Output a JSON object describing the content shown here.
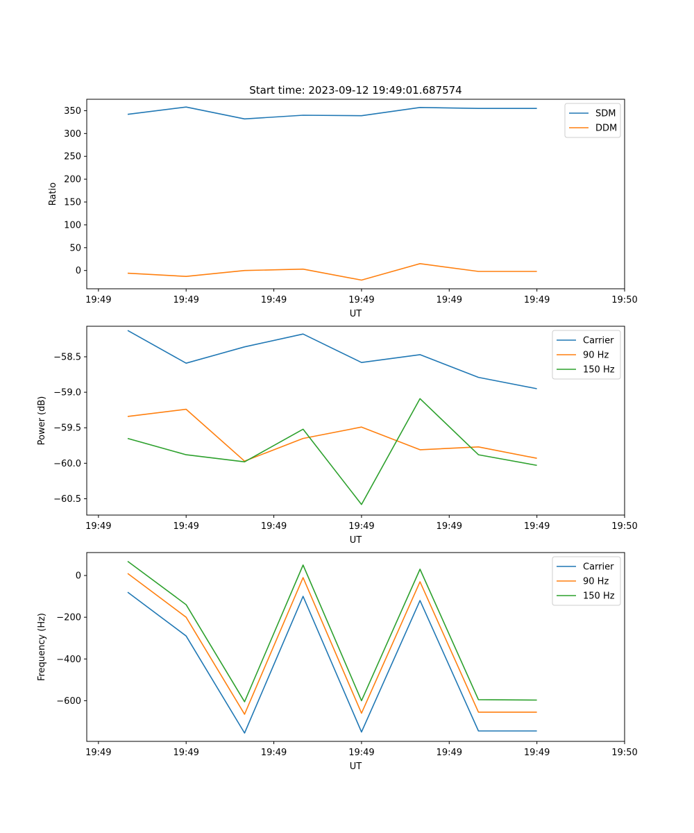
{
  "figure_title": "Start time: 2023-09-12 19:49:01.687574",
  "chart_data": [
    {
      "type": "line",
      "name": "ratio",
      "title": "Start time: 2023-09-12 19:49:01.687574",
      "xlabel": "UT",
      "ylabel": "Ratio",
      "xlim": [
        -0.2,
        9.0
      ],
      "ylim": [
        -40,
        375
      ],
      "x_ticks": [
        0,
        1.5,
        3,
        4.5,
        6,
        7.5,
        9
      ],
      "x_tick_labels": [
        "19:49",
        "19:49",
        "19:49",
        "19:49",
        "19:49",
        "19:49",
        "19:50"
      ],
      "y_ticks": [
        0,
        50,
        100,
        150,
        200,
        250,
        300,
        350
      ],
      "y_tick_labels": [
        "0",
        "50",
        "100",
        "150",
        "200",
        "250",
        "300",
        "350"
      ],
      "legend_position": "top-right",
      "x": [
        0.5,
        1.5,
        2.5,
        3.5,
        4.5,
        5.5,
        6.5,
        7.5
      ],
      "series": [
        {
          "name": "SDM",
          "color": "#1f77b4",
          "values": [
            342,
            358,
            332,
            340,
            339,
            357,
            355,
            355
          ]
        },
        {
          "name": "DDM",
          "color": "#ff7f0e",
          "values": [
            -6,
            -13,
            0,
            3,
            -21,
            15,
            -2,
            -2
          ]
        }
      ]
    },
    {
      "type": "line",
      "name": "power",
      "xlabel": "UT",
      "ylabel": "Power (dB)",
      "xlim": [
        -0.2,
        9.0
      ],
      "ylim": [
        -60.73,
        -58.07
      ],
      "x_ticks": [
        0,
        1.5,
        3,
        4.5,
        6,
        7.5,
        9
      ],
      "x_tick_labels": [
        "19:49",
        "19:49",
        "19:49",
        "19:49",
        "19:49",
        "19:49",
        "19:50"
      ],
      "y_ticks": [
        -58.5,
        -59.0,
        -59.5,
        -60.0,
        -60.5
      ],
      "y_tick_labels": [
        "−58.5",
        "−59.0",
        "−59.5",
        "−60.0",
        "−60.5"
      ],
      "legend_position": "top-right",
      "x": [
        0.5,
        1.5,
        2.5,
        3.5,
        4.5,
        5.5,
        6.5,
        7.5
      ],
      "series": [
        {
          "name": "Carrier",
          "color": "#1f77b4",
          "values": [
            -58.13,
            -58.59,
            -58.36,
            -58.18,
            -58.58,
            -58.47,
            -58.79,
            -58.95
          ]
        },
        {
          "name": "90 Hz",
          "color": "#ff7f0e",
          "values": [
            -59.34,
            -59.24,
            -59.97,
            -59.65,
            -59.49,
            -59.81,
            -59.77,
            -59.93
          ]
        },
        {
          "name": "150 Hz",
          "color": "#2ca02c",
          "values": [
            -59.65,
            -59.88,
            -59.98,
            -59.52,
            -60.58,
            -59.09,
            -59.88,
            -60.03
          ]
        }
      ]
    },
    {
      "type": "line",
      "name": "frequency",
      "xlabel": "UT",
      "ylabel": "Frequency (Hz)",
      "xlim": [
        -0.2,
        9.0
      ],
      "ylim": [
        -795,
        110
      ],
      "x_ticks": [
        0,
        1.5,
        3,
        4.5,
        6,
        7.5,
        9
      ],
      "x_tick_labels": [
        "19:49",
        "19:49",
        "19:49",
        "19:49",
        "19:49",
        "19:49",
        "19:50"
      ],
      "y_ticks": [
        0,
        -200,
        -400,
        -600
      ],
      "y_tick_labels": [
        "0",
        "−200",
        "−400",
        "−600"
      ],
      "legend_position": "top-right",
      "x": [
        0.5,
        1.5,
        2.5,
        3.5,
        4.5,
        5.5,
        6.5,
        7.5
      ],
      "series": [
        {
          "name": "Carrier",
          "color": "#1f77b4",
          "values": [
            -80,
            -290,
            -755,
            -100,
            -750,
            -120,
            -745,
            -745
          ]
        },
        {
          "name": "90 Hz",
          "color": "#ff7f0e",
          "values": [
            10,
            -200,
            -665,
            -10,
            -660,
            -30,
            -655,
            -655
          ]
        },
        {
          "name": "150 Hz",
          "color": "#2ca02c",
          "values": [
            68,
            -140,
            -605,
            50,
            -600,
            30,
            -595,
            -597
          ]
        }
      ]
    }
  ]
}
